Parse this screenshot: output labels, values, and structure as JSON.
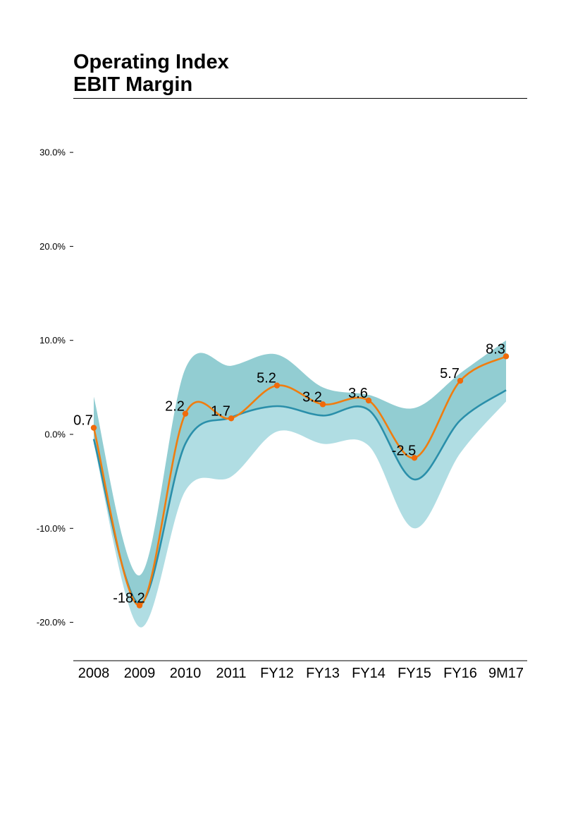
{
  "title_lines": [
    "Operating Index",
    "EBIT Margin"
  ],
  "colors": {
    "band_upper": "#92cdd2",
    "band_lower": "#b0dde3",
    "index_line": "#2a8faa",
    "margin_line": "#f07d0f",
    "margin_marker": "#f06a0a",
    "axis": "#000000"
  },
  "chart_data": {
    "type": "line",
    "categories": [
      "2008",
      "2009",
      "2010",
      "2011",
      "FY12",
      "FY13",
      "FY14",
      "FY15",
      "FY16",
      "9M17"
    ],
    "y_ticks": [
      {
        "value": 30,
        "label": "30.0%"
      },
      {
        "value": 20,
        "label": "20.0%"
      },
      {
        "value": 10,
        "label": "10.0%"
      },
      {
        "value": 0,
        "label": "0.0%"
      },
      {
        "value": -10,
        "label": "-10.0%"
      },
      {
        "value": -20,
        "label": "-20.0%"
      }
    ],
    "ylim": [
      -24,
      34
    ],
    "grid": false,
    "series": [
      {
        "role": "band",
        "upper": [
          4.0,
          -15.0,
          7.0,
          7.3,
          8.5,
          5.0,
          4.2,
          2.8,
          6.5,
          10.0
        ],
        "lower": [
          -1.0,
          -20.5,
          -6.0,
          -4.5,
          0.3,
          -1.0,
          -1.2,
          -10.0,
          -2.0,
          3.5
        ]
      },
      {
        "role": "index",
        "values": [
          -0.5,
          -18.0,
          -1.0,
          1.8,
          3.0,
          2.0,
          2.6,
          -4.8,
          1.5,
          4.7
        ]
      },
      {
        "role": "margin",
        "values": [
          0.7,
          -18.2,
          2.2,
          1.7,
          5.2,
          3.2,
          3.6,
          -2.5,
          5.7,
          8.3
        ],
        "labels": [
          "0.7",
          "-18.2",
          "2.2",
          "1.7",
          "5.2",
          "3.2",
          "3.6",
          "-2.5",
          "5.7",
          "8.3"
        ]
      }
    ]
  }
}
